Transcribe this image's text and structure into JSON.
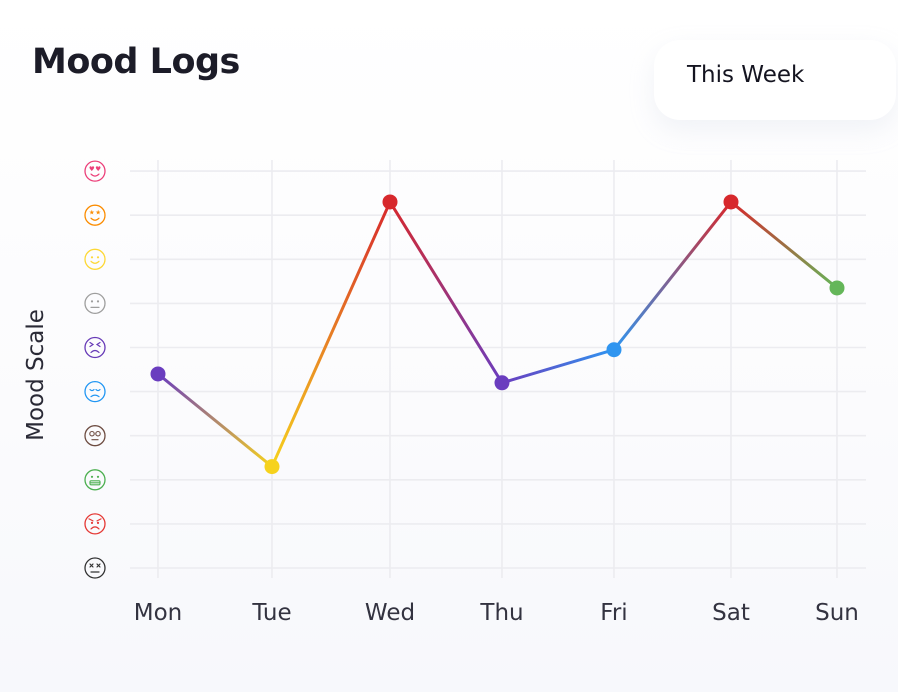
{
  "header": {
    "title": "Mood Logs",
    "range_label": "This Week"
  },
  "chart_data": {
    "type": "line",
    "title": "Mood Logs",
    "ylabel": "Mood Scale",
    "xlabel": "",
    "categories": [
      "Mon",
      "Tue",
      "Wed",
      "Thu",
      "Fri",
      "Sat",
      "Sun"
    ],
    "values": [
      4.4,
      2.3,
      8.3,
      4.2,
      4.95,
      8.3,
      6.35
    ],
    "ylim": [
      0,
      9
    ],
    "grid": true,
    "point_colors": [
      "#6a3dbf",
      "#f6d21d",
      "#d7282c",
      "#6a3dbf",
      "#2f95f0",
      "#d7282c",
      "#64b659"
    ],
    "y_icons": [
      {
        "name": "dead-face-icon",
        "color": "#333333"
      },
      {
        "name": "angry-face-icon",
        "color": "#e53935"
      },
      {
        "name": "grimace-face-icon",
        "color": "#4caf50"
      },
      {
        "name": "eye-roll-face-icon",
        "color": "#6d4c41"
      },
      {
        "name": "sad-face-icon",
        "color": "#2196f3"
      },
      {
        "name": "squint-face-icon",
        "color": "#673ab7"
      },
      {
        "name": "neutral-face-icon",
        "color": "#9e9e9e"
      },
      {
        "name": "smile-face-icon",
        "color": "#fdd835"
      },
      {
        "name": "star-eyes-face-icon",
        "color": "#fb8c00"
      },
      {
        "name": "love-face-icon",
        "color": "#ec407a"
      }
    ]
  }
}
